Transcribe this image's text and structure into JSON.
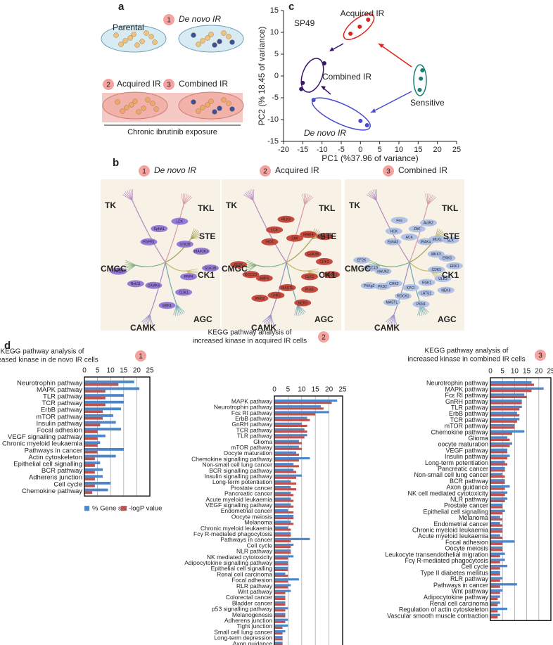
{
  "panels": [
    "a",
    "b",
    "c",
    "d"
  ],
  "schematic": {
    "parental": "Parental",
    "groups": [
      {
        "badge": "1",
        "label": "De novo IR"
      },
      {
        "badge": "2",
        "label": "Acquired IR"
      },
      {
        "badge": "3",
        "label": "Combined IR"
      }
    ],
    "caption": "Chronic ibrutinib exposure"
  },
  "kinome": [
    {
      "badge": "1",
      "title": "De novo IR",
      "color": "#8a6fd6",
      "groups": [
        "TK",
        "TKL",
        "STE",
        "CMGC",
        "CK1",
        "AGC",
        "CAMK"
      ],
      "kinases": [
        "FGFR1",
        "EphA1",
        "LCK",
        "STK38",
        "MAP2K2",
        "GSK3B",
        "PRP4",
        "CDK1",
        "ERK1",
        "CAMK4",
        "Nek11",
        "PKD2"
      ]
    },
    {
      "badge": "2",
      "title": "Acquired IR",
      "color": "#c0392b",
      "groups": [
        "TK",
        "TKL",
        "STE",
        "CMGC",
        "CK1",
        "AGC",
        "CAMK"
      ],
      "kinases": [
        "HCK",
        "LCK",
        "MLK3",
        "ZAK",
        "IRAK4",
        "MAP2K2",
        "GSK3B",
        "CDK1",
        "CAMK2",
        "ULK1",
        "PLK1",
        "NEK9",
        "MASTL",
        "CHK2",
        "PKD2",
        "AMPK",
        "KCC1D",
        "EF2K"
      ]
    },
    {
      "badge": "3",
      "title": "Combined IR",
      "color": "#a9bde6",
      "groups": [
        "TK",
        "TKL",
        "STE",
        "CMGC",
        "CK1",
        "AGC",
        "CAMK"
      ],
      "kinases": [
        "EphA3",
        "HCK",
        "Fes",
        "ACK",
        "ZAK",
        "ActR2",
        "IRAK4",
        "MLKL",
        "SLK",
        "MKK3",
        "ERK5",
        "ERK1",
        "CDK5",
        "ULK3",
        "NEK9",
        "RSK1",
        "LATS1",
        "PKN1",
        "KPCI",
        "ROCK1",
        "MASTL",
        "CHK2",
        "PKD2",
        "PhKg2",
        "NAUK2",
        "KCC1D",
        "EF2K"
      ]
    }
  ],
  "chart_data": [
    {
      "type": "scatter",
      "title": "SP49",
      "xlabel": "PC1 (%37.96 of variance)",
      "ylabel": "PC2 (% 18.45 of variance)",
      "xlim": [
        -20,
        25
      ],
      "xticks": [
        -20,
        -15,
        -10,
        -5,
        0,
        5,
        10,
        15,
        20,
        25
      ],
      "ylim": [
        -15,
        15
      ],
      "yticks": [
        -15,
        -10,
        -5,
        0,
        5,
        10,
        15
      ],
      "series": [
        {
          "name": "Acquired IR",
          "color": "#e0201c",
          "x": [
            -2.6,
            -0.2,
            2
          ],
          "y": [
            9.7,
            11.3,
            12.9
          ]
        },
        {
          "name": "Combined IR",
          "color": "#3b1769",
          "x": [
            -9.4,
            -15,
            -15.4
          ],
          "y": [
            2.9,
            -1.6,
            -3
          ]
        },
        {
          "name": "Sensitive",
          "color": "#1a7f74",
          "x": [
            16.1,
            15.7,
            15.4
          ],
          "y": [
            1.3,
            -0.6,
            -3.2
          ]
        },
        {
          "name": "De novo IR",
          "color": "#4a4ad0",
          "x": [
            -12.2,
            0,
            1.7
          ],
          "y": [
            -5.5,
            -10.3,
            -11.3
          ]
        }
      ]
    },
    {
      "type": "barh",
      "badge": "1",
      "title": [
        "KEGG pathway analysis of",
        "increased kinase in de novo IR cells"
      ],
      "xlim": [
        0,
        25
      ],
      "xticks": [
        0,
        5,
        10,
        15,
        20,
        25
      ],
      "grid": true,
      "categories": [
        "Neurotrophin pathway",
        "MAPK pathway",
        "TLR pathway",
        "TCR pathway",
        "ErbB pathway",
        "mTOR pathway",
        "Insulin pathway",
        "Focal adhesion",
        "VEGF signalling pathway",
        "Chronic myeloid leukaemia",
        "Pathways in cancer",
        "Actin cytoskeleton",
        "Epithelial cell signalling",
        "BCR pathway",
        "Adherens junction",
        "Cell cycle",
        "Chemokine pathway"
      ],
      "series": [
        {
          "name": "% Gene set",
          "color": "#4a86c8",
          "values": [
            19,
            21,
            15,
            15,
            14,
            11,
            12,
            14,
            8,
            6,
            15,
            12,
            6,
            7,
            7,
            10,
            9
          ]
        },
        {
          "name": "-logP value",
          "color": "#c0504d",
          "values": [
            13,
            8,
            8,
            8,
            7,
            7,
            6,
            5,
            5,
            5,
            5,
            4,
            4,
            4,
            4,
            4,
            3
          ]
        }
      ]
    },
    {
      "type": "barh",
      "badge": "2",
      "title": [
        "KEGG pathway analysis of",
        "increased kinase in acquired IR cells"
      ],
      "xlim": [
        0,
        25
      ],
      "xticks": [
        0,
        5,
        10,
        15,
        20,
        25
      ],
      "grid": true,
      "categories": [
        "MAPK pathway",
        "Neurotrophin pathway",
        "Fcε RI pathway",
        "ErbB pathway",
        "GnRH pathway",
        "TCR pathway",
        "TLR pathway",
        "Glioma",
        "mTOR pathway",
        "Oocyte maturation",
        "Chemokine signalling pathway",
        "Non-small cell lung cancer",
        "BCR signalling pathway",
        "Insulin signalling pathway",
        "Long-term potentiation",
        "Prostate cancer",
        "Pancreatic cancer",
        "Acute myeloid leukaemia",
        "VEGF signalling pathway",
        "Endometrial cancer",
        "Oocyte meiosis",
        "Melanoma",
        "Chronic myeloid leukaemia",
        "Fcγ R-mediated phagocytosis",
        "Pathways in cancer",
        "Cell cycle",
        "NLR pathway",
        "NK mediated cytotoxicity",
        "Adipocytokine signalling pathway",
        "Epithelial cell signalling",
        "Renal cell carcinoma",
        "Focal adhesion",
        "RLR pathway",
        "Wnt pathway",
        "Colorectal cancer",
        "Bladder cancer",
        "p53 signalling pathway",
        "Melanogenesis",
        "Adherens junction",
        "Tight junction",
        "Small cell lung cancer",
        "Long-term depression",
        "Axon guidance"
      ],
      "series": [
        {
          "color": "#4a86c8",
          "values": [
            23,
            17,
            20,
            12,
            10,
            11,
            12,
            9,
            9,
            8,
            13,
            7,
            7,
            10,
            6,
            6,
            6,
            6,
            6,
            5,
            7,
            6,
            5,
            6,
            13,
            7,
            6,
            7,
            5,
            5,
            4,
            9,
            6,
            6,
            4,
            4,
            5,
            4,
            5,
            5,
            4,
            3,
            3
          ]
        },
        {
          "color": "#c0504d",
          "values": [
            21,
            18,
            15,
            13,
            12,
            12,
            11,
            10,
            10,
            9,
            9,
            9,
            8,
            8,
            8,
            8,
            7,
            7,
            7,
            7,
            7,
            7,
            6,
            6,
            6,
            6,
            6,
            5,
            5,
            5,
            5,
            5,
            5,
            4,
            4,
            4,
            4,
            4,
            4,
            3,
            3,
            3,
            3
          ]
        }
      ]
    },
    {
      "type": "barh",
      "badge": "3",
      "title": [
        "KEGG pathway analysis of",
        "increased kinase in combined IR cells"
      ],
      "xlim": [
        0,
        25
      ],
      "xticks": [
        0,
        5,
        10,
        15,
        20,
        25
      ],
      "grid": true,
      "categories": [
        "Neurotrophin pathway",
        "MAPK pathway",
        "Fcε RI pathway",
        "GnRH pathway",
        "TLR pathway",
        "ErbB pathway",
        "TCR pathway",
        "mTOR pathway",
        "Chemokine pathway",
        "Glioma",
        "oocyte maturation",
        "VEGF pathway",
        "Insulin pathway",
        "Long-term potentiation",
        "Pancreatic cancer",
        "Non-small cell lung cancer",
        "BCR pathway",
        "Axon guidance",
        "NK cell mediated cytotoxicity",
        "NLR pathway",
        "Prostate cancer",
        "Epithelial cell signalling",
        "Melanoma",
        "Endometrial cancer",
        "Chronic myeloid leukaemia",
        "Acute myeloid leukaemia",
        "Focal adhesion",
        "Oocyte meiosis",
        "Leukocyte transendothelial migration",
        "Fcγ R-mediated phagocytosis",
        "Cell cycle",
        "Type II diabetes mellitus",
        "RLR pathway",
        "Pathways in cancer",
        "Wnt pathway",
        "Adipocytokine pathway",
        "Renal cell carcinoma",
        "Regulation of actin cytoskeleton",
        "Vascular smooth muscle contraction"
      ],
      "series": [
        {
          "color": "#4a86c8",
          "values": [
            17,
            22,
            14,
            13,
            13,
            11,
            12,
            10,
            14,
            7,
            9,
            7,
            8,
            6,
            6,
            5,
            6,
            8,
            7,
            7,
            5,
            6,
            4,
            4,
            5,
            4,
            10,
            5,
            6,
            6,
            7,
            4,
            5,
            11,
            5,
            4,
            4,
            7,
            4
          ]
        },
        {
          "color": "#c0504d",
          "values": [
            18,
            17,
            15,
            13,
            12,
            12,
            11,
            10,
            9,
            8,
            8,
            7,
            7,
            7,
            6,
            6,
            6,
            6,
            6,
            6,
            5,
            5,
            5,
            5,
            5,
            5,
            5,
            5,
            4,
            4,
            4,
            4,
            4,
            4,
            4,
            3,
            3,
            3,
            3
          ]
        }
      ]
    }
  ]
}
